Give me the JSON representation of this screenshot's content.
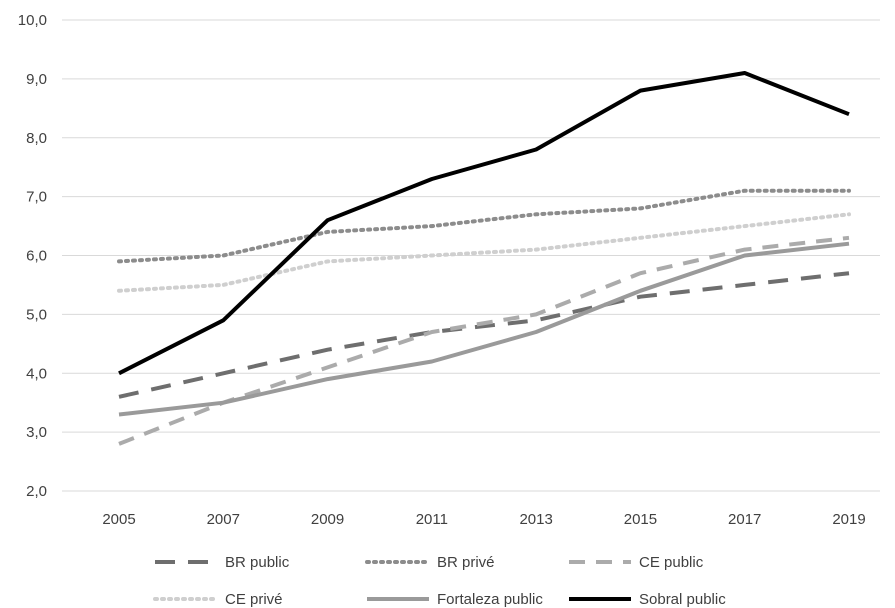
{
  "chart_data": {
    "type": "line",
    "title": "",
    "xlabel": "",
    "ylabel": "",
    "x": [
      "2005",
      "2007",
      "2009",
      "2011",
      "2013",
      "2015",
      "2017",
      "2019"
    ],
    "ylim": [
      2.0,
      10.0
    ],
    "y_ticks": [
      "2,0",
      "3,0",
      "4,0",
      "5,0",
      "6,0",
      "7,0",
      "8,0",
      "9,0",
      "10,0"
    ],
    "grid": "horizontal",
    "legend_position": "bottom",
    "series": [
      {
        "name": "BR public",
        "values": [
          3.6,
          4.0,
          4.4,
          4.7,
          4.9,
          5.3,
          5.5,
          5.7
        ],
        "color": "#6e6e6e",
        "style": "long-dash"
      },
      {
        "name": "BR privé",
        "values": [
          5.9,
          6.0,
          6.4,
          6.5,
          6.7,
          6.8,
          7.1,
          7.1
        ],
        "color": "#8c8c8c",
        "style": "dotted"
      },
      {
        "name": "CE public",
        "values": [
          2.8,
          3.5,
          4.1,
          4.7,
          5.0,
          5.7,
          6.1,
          6.3
        ],
        "color": "#ababab",
        "style": "dash"
      },
      {
        "name": "CE privé",
        "values": [
          5.4,
          5.5,
          5.9,
          6.0,
          6.1,
          6.3,
          6.5,
          6.7
        ],
        "color": "#cfcfcf",
        "style": "dotted"
      },
      {
        "name": "Fortaleza public",
        "values": [
          3.3,
          3.5,
          3.9,
          4.2,
          4.7,
          5.4,
          6.0,
          6.2
        ],
        "color": "#9a9a9a",
        "style": "solid"
      },
      {
        "name": "Sobral public",
        "values": [
          4.0,
          4.9,
          6.6,
          7.3,
          7.8,
          8.8,
          9.1,
          8.4
        ],
        "color": "#000000",
        "style": "solid"
      }
    ]
  }
}
